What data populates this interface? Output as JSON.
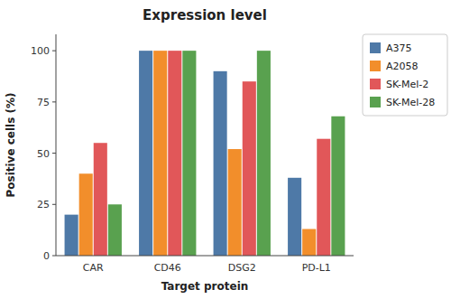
{
  "chart_data": {
    "type": "bar",
    "title": "Expression level",
    "xlabel": "Target protein",
    "ylabel": "Positive cells (%)",
    "categories": [
      "CAR",
      "CD46",
      "DSG2",
      "PD-L1"
    ],
    "series": [
      {
        "name": "A375",
        "color": "#4e79a7",
        "values": [
          20,
          100,
          90,
          38
        ]
      },
      {
        "name": "A2058",
        "color": "#f28e2b",
        "values": [
          40,
          100,
          52,
          13
        ]
      },
      {
        "name": "SK-Mel-2",
        "color": "#e15759",
        "values": [
          55,
          100,
          85,
          57
        ]
      },
      {
        "name": "SK-Mel-28",
        "color": "#59a14f",
        "values": [
          25,
          100,
          100,
          68
        ]
      }
    ],
    "ylim": [
      0,
      108
    ],
    "yticks": [
      0,
      25,
      50,
      75,
      100
    ],
    "grid": false,
    "legend": "right"
  }
}
